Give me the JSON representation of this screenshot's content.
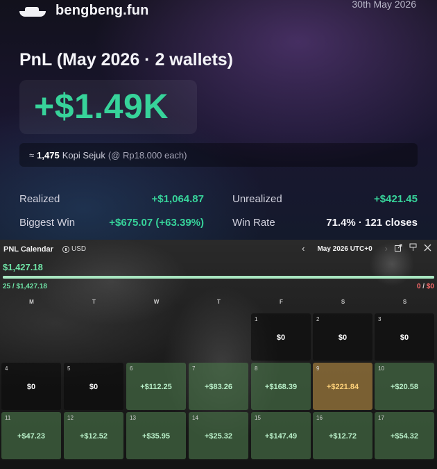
{
  "brand": {
    "name": "bengbeng.fun",
    "logo": "boat-logo-icon"
  },
  "date": "30th May 2026",
  "title": "PnL (May 2026 · 2 wallets)",
  "pnl": {
    "value": "+$1.49K",
    "color": "#37d39a"
  },
  "kopi": {
    "prefix": "≈",
    "count": "1,475",
    "name": "Kopi Sejuk",
    "rate": "(@ Rp18.000 each)"
  },
  "stats": {
    "realized": {
      "label": "Realized",
      "value": "+$1,064.87"
    },
    "unrealized": {
      "label": "Unrealized",
      "value": "+$421.45"
    },
    "biggest_win": {
      "label": "Biggest Win",
      "value": "+$675.07 (+63.39%)"
    },
    "win_rate": {
      "label": "Win Rate",
      "value": "71.4% · 121 closes"
    }
  },
  "calendar": {
    "title": "PNL Calendar",
    "currency": "USD",
    "month": "May 2026 UTC+0",
    "icons": [
      "chevron-left-icon",
      "chevron-right-icon",
      "share-icon",
      "pin-icon",
      "close-icon"
    ],
    "total": "$1,427.18",
    "progress_fraction": 1.0,
    "win_count": "25 / $1,427.18",
    "loss_count": "0",
    "loss_sep": " / ",
    "loss_value": "$0",
    "weekdays": [
      "M",
      "T",
      "W",
      "T",
      "F",
      "S",
      "S"
    ],
    "colors": {
      "positive": "#b9f0c9",
      "best": "#ffd27a",
      "loss": "#ff6b6b"
    },
    "days": [
      {
        "day": "1",
        "col": 4,
        "row": 0,
        "value": "$0",
        "kind": "zero"
      },
      {
        "day": "2",
        "col": 5,
        "row": 0,
        "value": "$0",
        "kind": "zero"
      },
      {
        "day": "3",
        "col": 6,
        "row": 0,
        "value": "$0",
        "kind": "zero"
      },
      {
        "day": "4",
        "col": 0,
        "row": 1,
        "value": "$0",
        "kind": "zero"
      },
      {
        "day": "5",
        "col": 1,
        "row": 1,
        "value": "$0",
        "kind": "zero"
      },
      {
        "day": "6",
        "col": 2,
        "row": 1,
        "value": "+$112.25",
        "kind": "pos"
      },
      {
        "day": "7",
        "col": 3,
        "row": 1,
        "value": "+$83.26",
        "kind": "pos"
      },
      {
        "day": "8",
        "col": 4,
        "row": 1,
        "value": "+$168.39",
        "kind": "pos"
      },
      {
        "day": "9",
        "col": 5,
        "row": 1,
        "value": "+$221.84",
        "kind": "best"
      },
      {
        "day": "10",
        "col": 6,
        "row": 1,
        "value": "+$20.58",
        "kind": "pos"
      },
      {
        "day": "11",
        "col": 0,
        "row": 2,
        "value": "+$47.23",
        "kind": "pos"
      },
      {
        "day": "12",
        "col": 1,
        "row": 2,
        "value": "+$12.52",
        "kind": "pos"
      },
      {
        "day": "13",
        "col": 2,
        "row": 2,
        "value": "+$35.95",
        "kind": "pos"
      },
      {
        "day": "14",
        "col": 3,
        "row": 2,
        "value": "+$25.32",
        "kind": "pos"
      },
      {
        "day": "15",
        "col": 4,
        "row": 2,
        "value": "+$147.49",
        "kind": "pos"
      },
      {
        "day": "16",
        "col": 5,
        "row": 2,
        "value": "+$12.72",
        "kind": "pos"
      },
      {
        "day": "17",
        "col": 6,
        "row": 2,
        "value": "+$54.32",
        "kind": "pos"
      }
    ]
  }
}
